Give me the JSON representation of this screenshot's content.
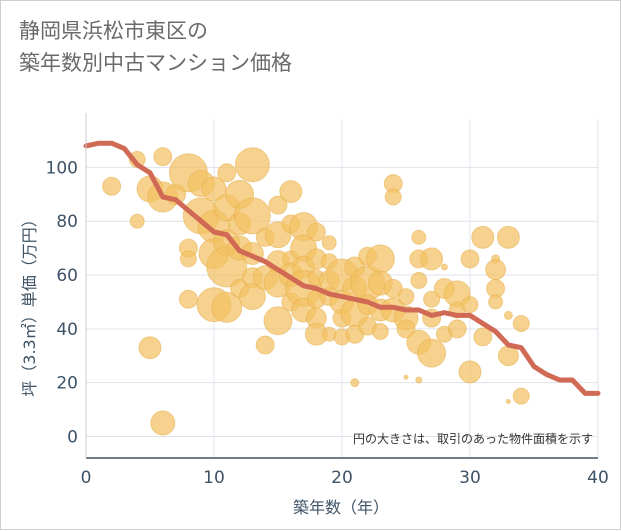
{
  "title_lines": [
    "静岡県浜松市東区の",
    "築年数別中古マンション価格"
  ],
  "note": "円の大きさは、取引のあった物件面積を示す",
  "chart_data": {
    "type": "scatter",
    "xlabel": "築年数（年）",
    "ylabel": "坪（3.3㎡）単価（万円）",
    "xlim": [
      0,
      40
    ],
    "ylim": [
      -8,
      118
    ],
    "xticks": [
      "0",
      "10",
      "20",
      "30",
      "40"
    ],
    "yticks": [
      "0",
      "20",
      "40",
      "60",
      "80",
      "100"
    ],
    "xtick_values": [
      0,
      10,
      20,
      30,
      40
    ],
    "ytick_values": [
      0,
      20,
      40,
      60,
      80,
      100
    ],
    "grid": true,
    "colors": {
      "bubble": "#f3c163",
      "bubble_stroke": "#e6b04f",
      "trend": "#d06a55",
      "grid": "#dfe3ea",
      "axis": "#3e5366"
    },
    "bubbles": [
      {
        "x": 2,
        "y": 93,
        "s": 9
      },
      {
        "x": 4,
        "y": 103,
        "s": 8
      },
      {
        "x": 4,
        "y": 80,
        "s": 7
      },
      {
        "x": 5,
        "y": 92,
        "s": 13
      },
      {
        "x": 5,
        "y": 33,
        "s": 11
      },
      {
        "x": 6,
        "y": 104,
        "s": 9
      },
      {
        "x": 6,
        "y": 89,
        "s": 15
      },
      {
        "x": 6,
        "y": 5,
        "s": 12
      },
      {
        "x": 7,
        "y": 90,
        "s": 10
      },
      {
        "x": 8,
        "y": 98,
        "s": 19
      },
      {
        "x": 8,
        "y": 70,
        "s": 9
      },
      {
        "x": 8,
        "y": 66,
        "s": 8
      },
      {
        "x": 8,
        "y": 51,
        "s": 9
      },
      {
        "x": 9,
        "y": 94,
        "s": 13
      },
      {
        "x": 9,
        "y": 82,
        "s": 18
      },
      {
        "x": 10,
        "y": 92,
        "s": 12
      },
      {
        "x": 10,
        "y": 78,
        "s": 16
      },
      {
        "x": 10,
        "y": 68,
        "s": 15
      },
      {
        "x": 10,
        "y": 49,
        "s": 17
      },
      {
        "x": 11,
        "y": 98,
        "s": 9
      },
      {
        "x": 11,
        "y": 85,
        "s": 13
      },
      {
        "x": 11,
        "y": 72,
        "s": 13
      },
      {
        "x": 11,
        "y": 63,
        "s": 20
      },
      {
        "x": 11,
        "y": 48,
        "s": 15
      },
      {
        "x": 12,
        "y": 90,
        "s": 14
      },
      {
        "x": 12,
        "y": 79,
        "s": 11
      },
      {
        "x": 12,
        "y": 70,
        "s": 12
      },
      {
        "x": 12,
        "y": 55,
        "s": 9
      },
      {
        "x": 13,
        "y": 101,
        "s": 17
      },
      {
        "x": 13,
        "y": 82,
        "s": 18
      },
      {
        "x": 13,
        "y": 68,
        "s": 11
      },
      {
        "x": 13,
        "y": 59,
        "s": 10
      },
      {
        "x": 13,
        "y": 52,
        "s": 13
      },
      {
        "x": 14,
        "y": 74,
        "s": 9
      },
      {
        "x": 14,
        "y": 59,
        "s": 12
      },
      {
        "x": 14,
        "y": 34,
        "s": 9
      },
      {
        "x": 15,
        "y": 86,
        "s": 9
      },
      {
        "x": 15,
        "y": 75,
        "s": 13
      },
      {
        "x": 15,
        "y": 65,
        "s": 11
      },
      {
        "x": 15,
        "y": 57,
        "s": 14
      },
      {
        "x": 15,
        "y": 43,
        "s": 14
      },
      {
        "x": 16,
        "y": 91,
        "s": 11
      },
      {
        "x": 16,
        "y": 79,
        "s": 9
      },
      {
        "x": 16,
        "y": 66,
        "s": 8
      },
      {
        "x": 16,
        "y": 60,
        "s": 12
      },
      {
        "x": 16,
        "y": 50,
        "s": 9
      },
      {
        "x": 17,
        "y": 78,
        "s": 14
      },
      {
        "x": 17,
        "y": 70,
        "s": 13
      },
      {
        "x": 17,
        "y": 63,
        "s": 11
      },
      {
        "x": 17,
        "y": 55,
        "s": 18
      },
      {
        "x": 17,
        "y": 47,
        "s": 12
      },
      {
        "x": 18,
        "y": 76,
        "s": 9
      },
      {
        "x": 18,
        "y": 66,
        "s": 10
      },
      {
        "x": 18,
        "y": 59,
        "s": 8
      },
      {
        "x": 18,
        "y": 51,
        "s": 9
      },
      {
        "x": 18,
        "y": 44,
        "s": 10
      },
      {
        "x": 18,
        "y": 38,
        "s": 11
      },
      {
        "x": 19,
        "y": 72,
        "s": 7
      },
      {
        "x": 19,
        "y": 65,
        "s": 8
      },
      {
        "x": 19,
        "y": 58,
        "s": 10
      },
      {
        "x": 19,
        "y": 52,
        "s": 9
      },
      {
        "x": 19,
        "y": 38,
        "s": 7
      },
      {
        "x": 20,
        "y": 60,
        "s": 16
      },
      {
        "x": 20,
        "y": 50,
        "s": 12
      },
      {
        "x": 20,
        "y": 44,
        "s": 9
      },
      {
        "x": 20,
        "y": 37,
        "s": 8
      },
      {
        "x": 21,
        "y": 63,
        "s": 10
      },
      {
        "x": 21,
        "y": 55,
        "s": 12
      },
      {
        "x": 21,
        "y": 46,
        "s": 14
      },
      {
        "x": 21,
        "y": 38,
        "s": 9
      },
      {
        "x": 21,
        "y": 20,
        "s": 4
      },
      {
        "x": 22,
        "y": 67,
        "s": 9
      },
      {
        "x": 22,
        "y": 57,
        "s": 17
      },
      {
        "x": 22,
        "y": 49,
        "s": 10
      },
      {
        "x": 22,
        "y": 41,
        "s": 9
      },
      {
        "x": 23,
        "y": 66,
        "s": 14
      },
      {
        "x": 23,
        "y": 57,
        "s": 12
      },
      {
        "x": 23,
        "y": 47,
        "s": 11
      },
      {
        "x": 23,
        "y": 39,
        "s": 8
      },
      {
        "x": 24,
        "y": 94,
        "s": 9
      },
      {
        "x": 24,
        "y": 89,
        "s": 8
      },
      {
        "x": 24,
        "y": 55,
        "s": 9
      },
      {
        "x": 24,
        "y": 47,
        "s": 12
      },
      {
        "x": 25,
        "y": 52,
        "s": 8
      },
      {
        "x": 25,
        "y": 44,
        "s": 12
      },
      {
        "x": 25,
        "y": 40,
        "s": 9
      },
      {
        "x": 25,
        "y": 22,
        "s": 2
      },
      {
        "x": 26,
        "y": 74,
        "s": 7
      },
      {
        "x": 26,
        "y": 66,
        "s": 9
      },
      {
        "x": 26,
        "y": 58,
        "s": 8
      },
      {
        "x": 26,
        "y": 35,
        "s": 12
      },
      {
        "x": 26,
        "y": 21,
        "s": 3
      },
      {
        "x": 27,
        "y": 66,
        "s": 11
      },
      {
        "x": 27,
        "y": 51,
        "s": 8
      },
      {
        "x": 27,
        "y": 44,
        "s": 9
      },
      {
        "x": 27,
        "y": 31,
        "s": 14
      },
      {
        "x": 28,
        "y": 63,
        "s": 3
      },
      {
        "x": 28,
        "y": 55,
        "s": 10
      },
      {
        "x": 28,
        "y": 38,
        "s": 8
      },
      {
        "x": 29,
        "y": 53,
        "s": 13
      },
      {
        "x": 29,
        "y": 47,
        "s": 8
      },
      {
        "x": 29,
        "y": 40,
        "s": 9
      },
      {
        "x": 30,
        "y": 66,
        "s": 9
      },
      {
        "x": 30,
        "y": 49,
        "s": 8
      },
      {
        "x": 30,
        "y": 24,
        "s": 11
      },
      {
        "x": 31,
        "y": 74,
        "s": 11
      },
      {
        "x": 31,
        "y": 37,
        "s": 9
      },
      {
        "x": 32,
        "y": 66,
        "s": 4
      },
      {
        "x": 32,
        "y": 62,
        "s": 10
      },
      {
        "x": 32,
        "y": 55,
        "s": 9
      },
      {
        "x": 32,
        "y": 50,
        "s": 7
      },
      {
        "x": 33,
        "y": 74,
        "s": 11
      },
      {
        "x": 33,
        "y": 45,
        "s": 4
      },
      {
        "x": 33,
        "y": 30,
        "s": 10
      },
      {
        "x": 33,
        "y": 13,
        "s": 2
      },
      {
        "x": 34,
        "y": 42,
        "s": 8
      },
      {
        "x": 34,
        "y": 15,
        "s": 8
      }
    ],
    "trend": {
      "x": [
        0,
        1,
        2,
        3,
        4,
        5,
        6,
        7,
        8,
        9,
        10,
        11,
        12,
        13,
        14,
        15,
        16,
        17,
        18,
        19,
        20,
        21,
        22,
        23,
        24,
        25,
        26,
        27,
        28,
        29,
        30,
        31,
        32,
        33,
        34,
        35,
        36,
        37,
        38,
        39,
        40
      ],
      "y": [
        108,
        109,
        109,
        107,
        101,
        98,
        89,
        88,
        84,
        80,
        76,
        75,
        69,
        67,
        65,
        62,
        59,
        56,
        55,
        53,
        52,
        51,
        50,
        48,
        48,
        47,
        47,
        45,
        46,
        45,
        45,
        42,
        39,
        34,
        33,
        26,
        23,
        21,
        21,
        16,
        16
      ]
    }
  }
}
